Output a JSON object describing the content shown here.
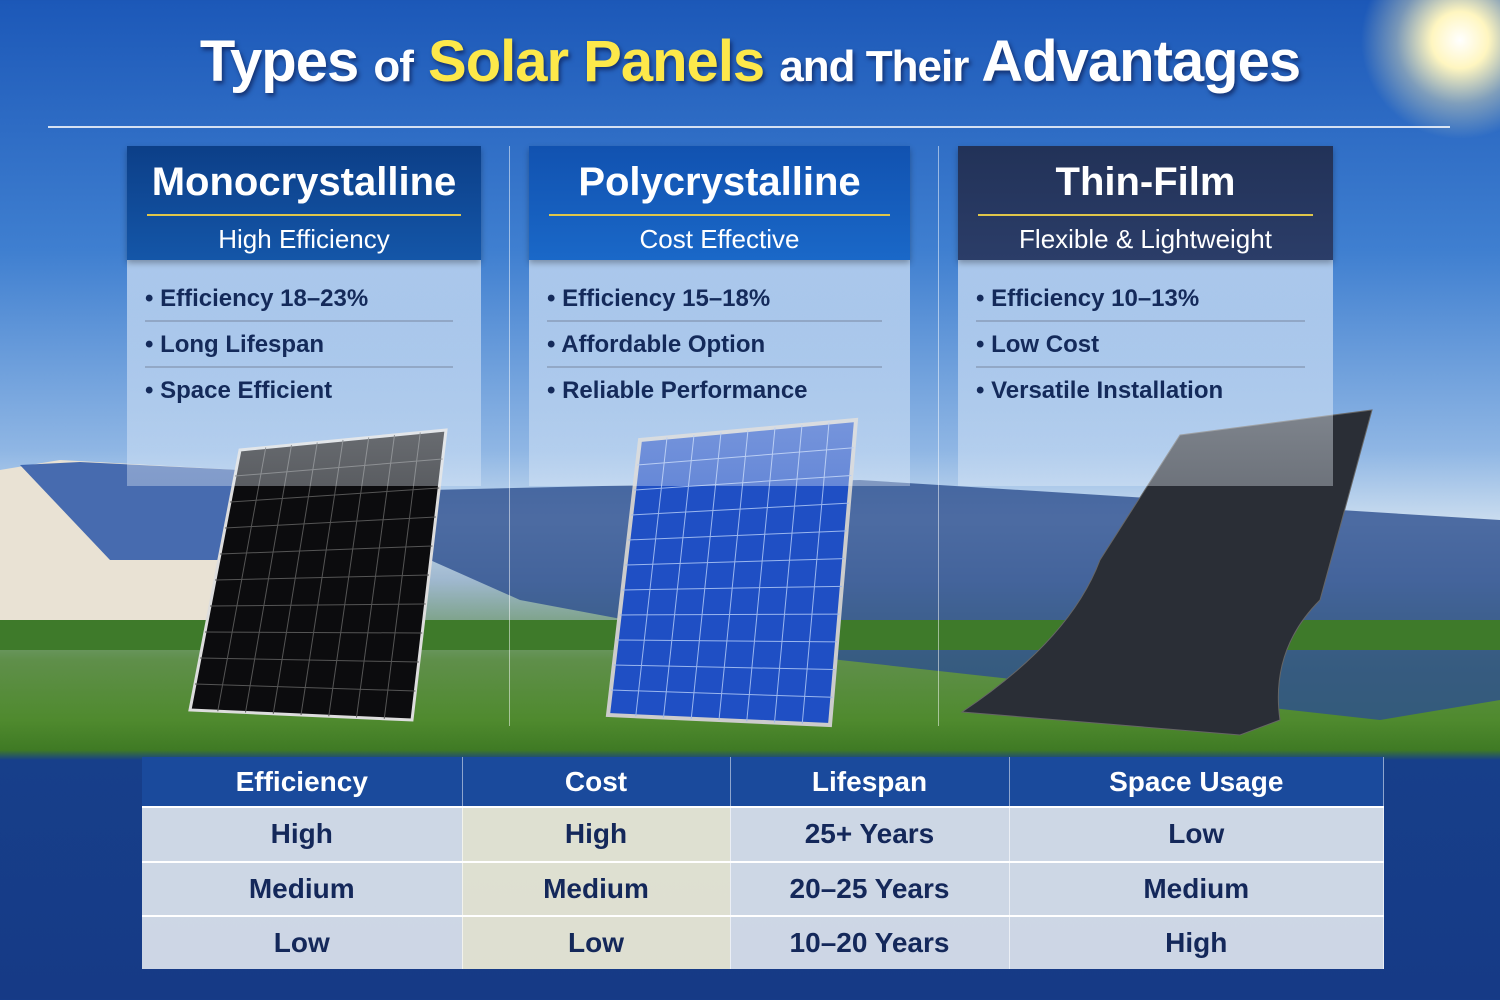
{
  "title": {
    "part1": "Types",
    "part2": "of",
    "part3": "Solar Panels",
    "part4": "and Their",
    "part5": "Advantages"
  },
  "colors": {
    "mono_header": "#0f4a98",
    "poly_header": "#1560c0",
    "thin_header": "#25365e",
    "highlight": "#fde84a"
  },
  "cards": [
    {
      "name": "Monocrystalline",
      "subtitle": "High Efficiency",
      "bullets": [
        "Efficiency 18–23%",
        "Long Lifespan",
        "Space Efficient"
      ]
    },
    {
      "name": "Polycrystalline",
      "subtitle": "Cost Effective",
      "bullets": [
        "Efficiency 15–18%",
        "Affordable Option",
        "Reliable Performance"
      ]
    },
    {
      "name": "Thin-Film",
      "subtitle": "Flexible & Lightweight",
      "bullets": [
        "Efficiency 10–13%",
        "Low Cost",
        "Versatile Installation"
      ]
    }
  ],
  "table": {
    "headers": [
      "Efficiency",
      "Cost",
      "Lifespan",
      "Space Usage"
    ],
    "rows": [
      [
        "High",
        "High",
        "25+ Years",
        "Low"
      ],
      [
        "Medium",
        "Medium",
        "20–25 Years",
        "Medium"
      ],
      [
        "Low",
        "Low",
        "10–20 Years",
        "High"
      ]
    ]
  }
}
